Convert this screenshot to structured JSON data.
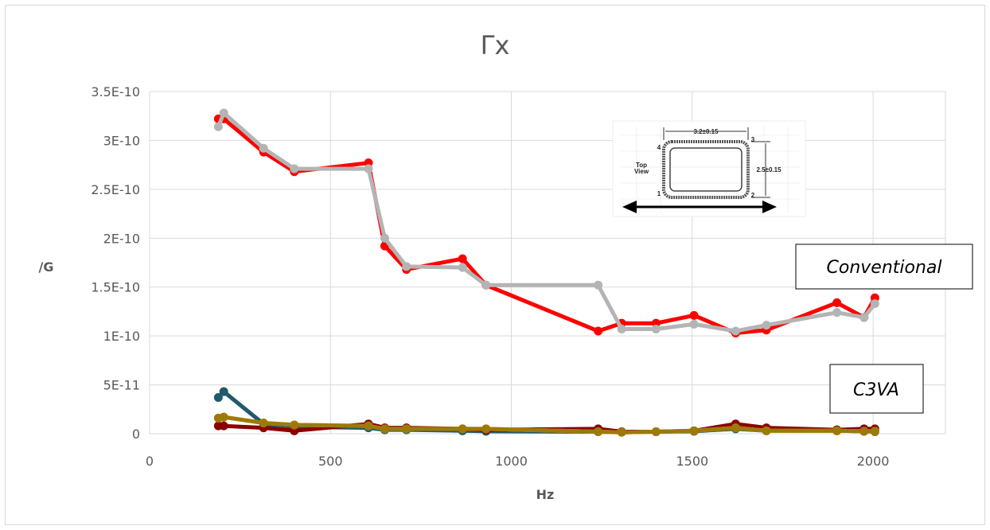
{
  "chart_data": {
    "type": "line",
    "title": "Γx",
    "xlabel": "Hz",
    "ylabel": "/G",
    "xlim": [
      0,
      2200
    ],
    "ylim": [
      0,
      3.5e-10
    ],
    "x_ticks": [
      "0",
      "500",
      "1000",
      "1500",
      "2000"
    ],
    "x_tick_values": [
      0,
      500,
      1000,
      1500,
      2000
    ],
    "y_ticks": [
      "0",
      "5E-11",
      "1E-10",
      "1.5E-10",
      "2E-10",
      "2.5E-10",
      "3E-10",
      "3.5E-10"
    ],
    "y_tick_values": [
      0,
      5e-11,
      1e-10,
      1.5e-10,
      2e-10,
      2.5e-10,
      3e-10,
      3.5e-10
    ],
    "grid": true,
    "annotations": [
      "Conventional",
      "C3VA"
    ],
    "inset": {
      "labels": [
        "3.2±0.15",
        "2.5±0.15",
        "Top",
        "View",
        "1",
        "2",
        "3",
        "4"
      ]
    },
    "series": [
      {
        "color": "#ff0000",
        "x": [
          190,
          205,
          315,
          400,
          605,
          650,
          710,
          865,
          930,
          1240,
          1305,
          1400,
          1505,
          1620,
          1705,
          1900,
          1975,
          2005
        ],
        "values": [
          3.22e-10,
          3.22e-10,
          2.88e-10,
          2.68e-10,
          2.77e-10,
          1.92e-10,
          1.68e-10,
          1.79e-10,
          1.52e-10,
          1.05e-10,
          1.13e-10,
          1.13e-10,
          1.21e-10,
          1.03e-10,
          1.06e-10,
          1.34e-10,
          1.19e-10,
          1.39e-10
        ]
      },
      {
        "color": "#b4b4b4",
        "x": [
          190,
          205,
          315,
          400,
          605,
          650,
          710,
          865,
          930,
          1240,
          1305,
          1400,
          1505,
          1620,
          1705,
          1900,
          1975,
          2005
        ],
        "values": [
          3.14e-10,
          3.28e-10,
          2.92e-10,
          2.71e-10,
          2.71e-10,
          2e-10,
          1.71e-10,
          1.7e-10,
          1.52e-10,
          1.52e-10,
          1.07e-10,
          1.07e-10,
          1.12e-10,
          1.05e-10,
          1.11e-10,
          1.24e-10,
          1.19e-10,
          1.33e-10
        ]
      },
      {
        "color": "#ff9999",
        "x": [
          190,
          205,
          315
        ],
        "values": [
          3.7e-11,
          4.3e-11,
          1e-11
        ]
      },
      {
        "color": "#1f5a6e",
        "x": [
          190,
          205,
          315,
          400,
          605,
          650,
          710,
          865,
          930,
          1240,
          1305,
          1400,
          1505,
          1620,
          1705,
          1900,
          1975,
          2005
        ],
        "values": [
          3.7e-11,
          4.3e-11,
          1e-11,
          7e-12,
          6e-12,
          4e-12,
          4e-12,
          3e-12,
          2.5e-12,
          2e-12,
          1.5e-12,
          2e-12,
          2.5e-12,
          5e-12,
          3e-12,
          3e-12,
          2.5e-12,
          2e-12
        ]
      },
      {
        "color": "#8b0000",
        "x": [
          190,
          205,
          315,
          400,
          605,
          650,
          710,
          865,
          930,
          1240,
          1305,
          1400,
          1505,
          1620,
          1705,
          1900,
          1975,
          2005
        ],
        "values": [
          8e-12,
          8e-12,
          6e-12,
          3e-12,
          1e-11,
          6e-12,
          6e-12,
          5e-12,
          4e-12,
          5e-12,
          2e-12,
          2e-12,
          3e-12,
          1e-11,
          6e-12,
          4e-12,
          5e-12,
          5e-12
        ]
      },
      {
        "color": "#ffc000",
        "x": [
          190,
          205,
          315,
          400,
          605,
          650,
          710,
          865,
          930,
          1240,
          1305,
          1400,
          1505,
          1620,
          1705,
          1900,
          1975,
          2005
        ],
        "values": [
          1.6e-11,
          1.7e-11,
          1.1e-11,
          9e-12,
          8e-12,
          5e-12,
          5e-12,
          5e-12,
          5e-12,
          2e-12,
          1.5e-12,
          2e-12,
          3e-12,
          6e-12,
          3e-12,
          3e-12,
          2.5e-12,
          2.5e-12
        ]
      },
      {
        "color": "#9c7a0a",
        "x": [
          190,
          205,
          315,
          400,
          605,
          650,
          710,
          865,
          930,
          1240,
          1305,
          1400,
          1505,
          1620,
          1705,
          1900,
          1975,
          2005
        ],
        "values": [
          1.6e-11,
          1.7e-11,
          1.1e-11,
          9e-12,
          8e-12,
          5e-12,
          5e-12,
          5e-12,
          5e-12,
          2e-12,
          1.5e-12,
          2e-12,
          3e-12,
          6e-12,
          3e-12,
          3e-12,
          2.5e-12,
          2.5e-12
        ]
      }
    ]
  }
}
